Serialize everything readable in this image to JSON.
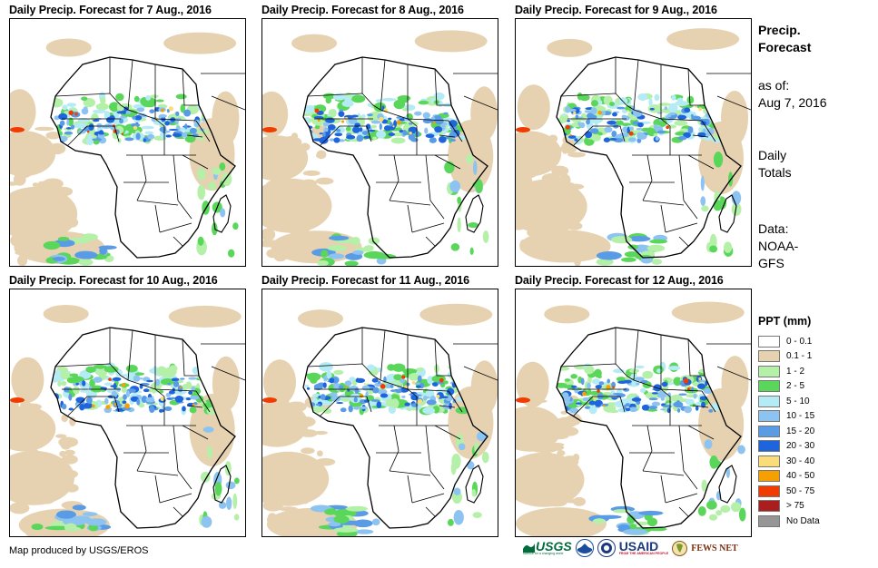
{
  "panels": [
    {
      "title": "Daily Precip. Forecast for 7 Aug., 2016"
    },
    {
      "title": "Daily Precip. Forecast for 8 Aug., 2016"
    },
    {
      "title": "Daily Precip. Forecast for 9 Aug., 2016"
    },
    {
      "title": "Daily Precip. Forecast for 10 Aug., 2016"
    },
    {
      "title": "Daily Precip. Forecast for 11 Aug., 2016"
    },
    {
      "title": "Daily Precip. Forecast for 12 Aug., 2016"
    }
  ],
  "sidebar": {
    "heading_line1": "Precip.",
    "heading_line2": "Forecast",
    "asof_line1": "as of:",
    "asof_line2": "Aug 7, 2016",
    "totals_line1": "Daily",
    "totals_line2": "Totals",
    "data_line1": "Data:",
    "data_line2": "NOAA-",
    "data_line3": "GFS"
  },
  "legend": {
    "title": "PPT (mm)",
    "items": [
      {
        "label": "0 - 0.1",
        "color": "#ffffff"
      },
      {
        "label": "0.1 - 1",
        "color": "#e6d2b0"
      },
      {
        "label": "1 - 2",
        "color": "#b4f0a8"
      },
      {
        "label": "2 - 5",
        "color": "#5ad75a"
      },
      {
        "label": "5 - 10",
        "color": "#b4ebf5"
      },
      {
        "label": "10 - 15",
        "color": "#8cc3f0"
      },
      {
        "label": "15 - 20",
        "color": "#5a9be6"
      },
      {
        "label": "20 - 30",
        "color": "#1e64dc"
      },
      {
        "label": "30 - 40",
        "color": "#fadc78"
      },
      {
        "label": "40 - 50",
        "color": "#f5a000"
      },
      {
        "label": "50 - 75",
        "color": "#f03c00"
      },
      {
        "label": "> 75",
        "color": "#aa1e1e"
      },
      {
        "label": "No Data",
        "color": "#969696"
      }
    ]
  },
  "footer": {
    "credit": "Map produced by USGS/EROS"
  },
  "logos": {
    "usgs": "USGS",
    "usgs_tagline": "science for a changing world",
    "usaid": "USAID",
    "usaid_tagline": "FROM THE AMERICAN PEOPLE",
    "fewsnet": "FEWS NET"
  }
}
